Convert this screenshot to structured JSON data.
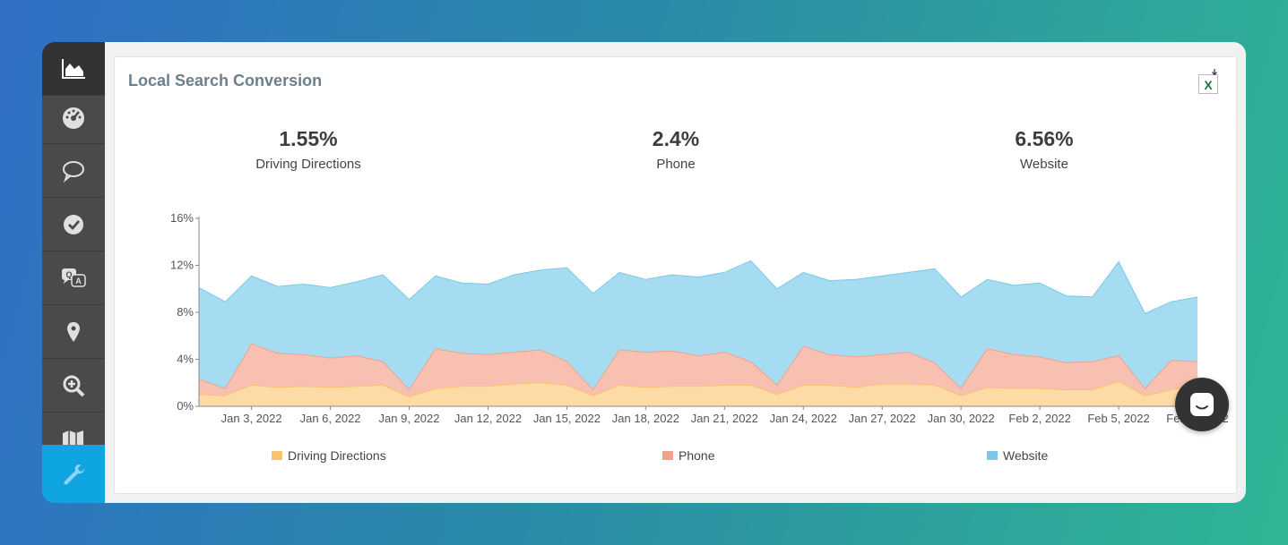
{
  "sidebar": {
    "items": [
      {
        "icon": "area-chart-icon",
        "name": "sidebar-item-dashboard"
      },
      {
        "icon": "speedometer-icon",
        "name": "sidebar-item-performance"
      },
      {
        "icon": "speech-bubble-icon",
        "name": "sidebar-item-reviews"
      },
      {
        "icon": "check-circle-icon",
        "name": "sidebar-item-tasks"
      },
      {
        "icon": "qa-icon",
        "name": "sidebar-item-questions"
      },
      {
        "icon": "map-pin-icon",
        "name": "sidebar-item-locations"
      },
      {
        "icon": "zoom-in-icon",
        "name": "sidebar-item-search"
      },
      {
        "icon": "map-icon",
        "name": "sidebar-item-map"
      },
      {
        "icon": "wrench-icon",
        "name": "sidebar-item-tools"
      }
    ],
    "active_color": "#0ea5e0"
  },
  "card": {
    "title": "Local Search Conversion",
    "export_icon": "excel-export-icon"
  },
  "stats": [
    {
      "value": "1.55%",
      "label": "Driving Directions"
    },
    {
      "value": "2.4%",
      "label": "Phone"
    },
    {
      "value": "6.56%",
      "label": "Website"
    }
  ],
  "chart_data": {
    "type": "area",
    "stacked": true,
    "y_ticks": [
      "0%",
      "4%",
      "8%",
      "12%",
      "16%"
    ],
    "ylim": [
      0,
      16
    ],
    "x_tick_labels": [
      "Jan 3, 2022",
      "Jan 6, 2022",
      "Jan 9, 2022",
      "Jan 12, 2022",
      "Jan 15, 2022",
      "Jan 18, 2022",
      "Jan 21, 2022",
      "Jan 24, 2022",
      "Jan 27, 2022",
      "Jan 30, 2022",
      "Feb 2, 2022",
      "Feb 5, 2022",
      "Feb 8, 2022"
    ],
    "x": [
      "Jan 1, 2022",
      "Jan 2, 2022",
      "Jan 3, 2022",
      "Jan 4, 2022",
      "Jan 5, 2022",
      "Jan 6, 2022",
      "Jan 7, 2022",
      "Jan 8, 2022",
      "Jan 9, 2022",
      "Jan 10, 2022",
      "Jan 11, 2022",
      "Jan 12, 2022",
      "Jan 13, 2022",
      "Jan 14, 2022",
      "Jan 15, 2022",
      "Jan 16, 2022",
      "Jan 17, 2022",
      "Jan 18, 2022",
      "Jan 19, 2022",
      "Jan 20, 2022",
      "Jan 21, 2022",
      "Jan 22, 2022",
      "Jan 23, 2022",
      "Jan 24, 2022",
      "Jan 25, 2022",
      "Jan 26, 2022",
      "Jan 27, 2022",
      "Jan 28, 2022",
      "Jan 29, 2022",
      "Jan 30, 2022",
      "Jan 31, 2022",
      "Feb 1, 2022",
      "Feb 2, 2022",
      "Feb 3, 2022",
      "Feb 4, 2022",
      "Feb 5, 2022",
      "Feb 6, 2022",
      "Feb 7, 2022",
      "Feb 8, 2022"
    ],
    "series": [
      {
        "name": "Driving Directions",
        "color": "#f9c36e",
        "fill": "#fddba6",
        "values": [
          1.0,
          0.9,
          1.8,
          1.6,
          1.7,
          1.6,
          1.7,
          1.8,
          0.8,
          1.5,
          1.7,
          1.7,
          1.9,
          2.0,
          1.8,
          0.9,
          1.8,
          1.6,
          1.7,
          1.7,
          1.8,
          1.8,
          1.0,
          1.8,
          1.8,
          1.6,
          1.9,
          1.9,
          1.8,
          0.9,
          1.6,
          1.5,
          1.5,
          1.4,
          1.4,
          2.1,
          0.9,
          1.4,
          1.8
        ]
      },
      {
        "name": "Phone",
        "color": "#f4a08a",
        "fill": "#f8c0b0",
        "values": [
          1.3,
          0.6,
          3.5,
          2.9,
          2.7,
          2.5,
          2.6,
          2.0,
          0.6,
          3.4,
          2.8,
          2.7,
          2.7,
          2.8,
          2.0,
          0.5,
          3.0,
          3.0,
          3.0,
          2.6,
          2.8,
          2.0,
          0.8,
          3.3,
          2.6,
          2.6,
          2.5,
          2.7,
          1.9,
          0.6,
          3.3,
          2.9,
          2.7,
          2.3,
          2.4,
          2.2,
          0.6,
          2.5,
          2.0
        ]
      },
      {
        "name": "Website",
        "color": "#78c9e8",
        "fill": "#a6dcf1",
        "values": [
          7.8,
          7.4,
          5.8,
          5.7,
          6.0,
          6.0,
          6.3,
          7.4,
          7.7,
          6.2,
          6.0,
          6.0,
          6.6,
          6.8,
          8.0,
          8.2,
          6.6,
          6.2,
          6.5,
          6.7,
          6.8,
          8.6,
          8.2,
          6.3,
          6.3,
          6.6,
          6.7,
          6.8,
          8.0,
          7.8,
          5.9,
          5.9,
          6.3,
          5.7,
          5.5,
          8.0,
          6.4,
          5.0,
          5.5
        ]
      }
    ],
    "legend_placement": "bottom"
  }
}
